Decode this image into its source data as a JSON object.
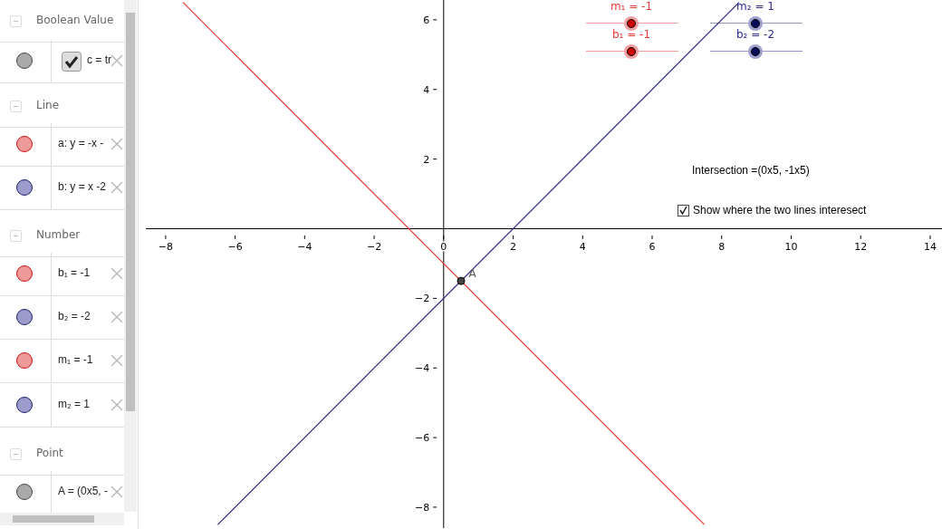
{
  "chart_data": {
    "type": "line",
    "legend": false,
    "grid": false,
    "marker": "none",
    "line_style": "solid",
    "xlim": [
      -8.57,
      14.34
    ],
    "ylim": [
      -8.6,
      6.57
    ],
    "xticks": [
      -8,
      -6,
      -4,
      -2,
      0,
      2,
      4,
      6,
      8,
      10,
      12,
      14
    ],
    "yticks": [
      -8,
      -6,
      -4,
      -2,
      2,
      4,
      6
    ],
    "series": [
      {
        "color": "#e53935",
        "x": [
          -7.5,
          7.5
        ],
        "values": [
          6.5,
          -8.5
        ]
      },
      {
        "color": "#2e2a8a",
        "x": [
          -6.5,
          8.5
        ],
        "values": [
          -8.5,
          6.5
        ]
      },
      {
        "type": "scatter",
        "name": "A",
        "marker": "circle",
        "color": "#444444",
        "x": [
          0.5
        ],
        "values": [
          -1.5
        ]
      }
    ],
    "annotations": [
      "Boolean Value",
      "c = tr",
      "Line",
      "a: y = -x -",
      "b: y = x -2",
      "Number",
      "b₁ = -1",
      "b₂ = -2",
      "m₁ = -1",
      "m₂ = 1",
      "Point",
      "A = (0x5, -",
      "m₁ = -1",
      "b₁ = -1",
      "m₂ = 1",
      "b₂ = -2",
      "Intersection =(0x5, -1x5)",
      "Show where the two lines interesect"
    ]
  }
}
